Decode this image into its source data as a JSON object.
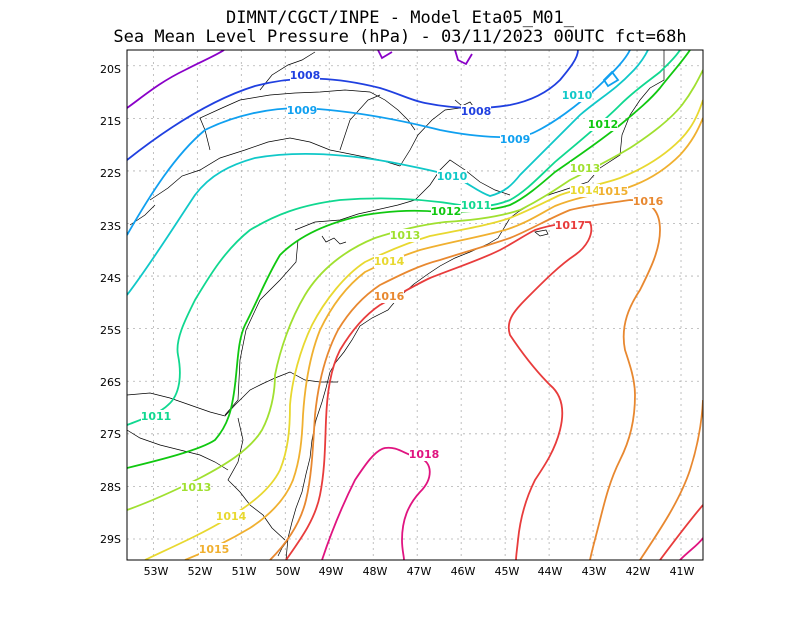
{
  "title": {
    "line1": "DIMNT/CGCT/INPE -  Model Eta05_M01_",
    "line2": "Sea Mean Level Pressure (hPa) - 03/11/2023 00UTC fct=68h"
  },
  "axes": {
    "latitudes": [
      "20S",
      "21S",
      "22S",
      "23S",
      "24S",
      "25S",
      "26S",
      "27S",
      "28S",
      "29S"
    ],
    "longitudes": [
      "53W",
      "52W",
      "51W",
      "50W",
      "49W",
      "48W",
      "47W",
      "46W",
      "45W",
      "44W",
      "43W",
      "42W",
      "41W"
    ],
    "lon_range": [
      -53.6,
      -40.5
    ],
    "lat_range": [
      -29.4,
      -19.7
    ]
  },
  "isobars": [
    {
      "value": 1007,
      "color": "#8a00c8",
      "labels": []
    },
    {
      "value": 1008,
      "color": "#2040e0",
      "labels": [
        "1008",
        "1008"
      ]
    },
    {
      "value": 1009,
      "color": "#10a0f0",
      "labels": [
        "1009",
        "1009"
      ]
    },
    {
      "value": 1010,
      "color": "#10c8c8",
      "labels": [
        "1010",
        "1010"
      ]
    },
    {
      "value": 1011,
      "color": "#10d890",
      "labels": [
        "1011",
        "1011"
      ]
    },
    {
      "value": 1012,
      "color": "#10c810",
      "labels": [
        "1012",
        "1012"
      ]
    },
    {
      "value": 1013,
      "color": "#a0e030",
      "labels": [
        "1013",
        "1013",
        "1013"
      ]
    },
    {
      "value": 1014,
      "color": "#e8d830",
      "labels": [
        "1014",
        "1014",
        "1014"
      ]
    },
    {
      "value": 1015,
      "color": "#f0b030",
      "labels": [
        "1015",
        "1015"
      ]
    },
    {
      "value": 1016,
      "color": "#e88830",
      "labels": [
        "1016",
        "1016"
      ]
    },
    {
      "value": 1017,
      "color": "#e83c3c",
      "labels": [
        "1017"
      ]
    },
    {
      "value": 1018,
      "color": "#e01480",
      "labels": [
        "1018"
      ]
    }
  ]
}
